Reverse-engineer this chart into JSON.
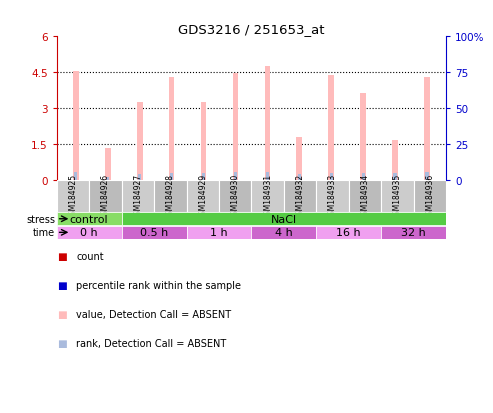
{
  "title": "GDS3216 / 251653_at",
  "samples": [
    "GSM184925",
    "GSM184926",
    "GSM184927",
    "GSM184928",
    "GSM184929",
    "GSM184930",
    "GSM184931",
    "GSM184932",
    "GSM184933",
    "GSM184934",
    "GSM184935",
    "GSM184936"
  ],
  "pink_bar_values": [
    4.55,
    1.35,
    3.25,
    4.3,
    3.25,
    4.45,
    4.75,
    1.8,
    4.4,
    3.65,
    1.65,
    4.3
  ],
  "blue_bar_values": [
    0.32,
    0.12,
    0.27,
    0.3,
    0.28,
    0.32,
    0.32,
    0.27,
    0.3,
    0.3,
    0.28,
    0.32
  ],
  "ylim_left": [
    0,
    6
  ],
  "ylim_right": [
    0,
    100
  ],
  "yticks_left": [
    0,
    1.5,
    3.0,
    4.5,
    6.0
  ],
  "ytick_labels_left": [
    "0",
    "1.5",
    "3",
    "4.5",
    "6"
  ],
  "yticks_right": [
    0,
    25,
    50,
    75,
    100
  ],
  "ytick_labels_right": [
    "0",
    "25",
    "50",
    "75",
    "100%"
  ],
  "stress_groups": [
    {
      "label": "control",
      "start": 0,
      "end": 2,
      "color": "#88dd66"
    },
    {
      "label": "NaCl",
      "start": 2,
      "end": 12,
      "color": "#55cc44"
    }
  ],
  "time_groups": [
    {
      "label": "0 h",
      "start": 0,
      "end": 2,
      "color": "#f0a0f0"
    },
    {
      "label": "0.5 h",
      "start": 2,
      "end": 4,
      "color": "#cc66cc"
    },
    {
      "label": "1 h",
      "start": 4,
      "end": 6,
      "color": "#f0a0f0"
    },
    {
      "label": "4 h",
      "start": 6,
      "end": 8,
      "color": "#cc66cc"
    },
    {
      "label": "16 h",
      "start": 8,
      "end": 10,
      "color": "#f0a0f0"
    },
    {
      "label": "32 h",
      "start": 10,
      "end": 12,
      "color": "#cc66cc"
    }
  ],
  "legend_items": [
    {
      "color": "#cc0000",
      "label": "count"
    },
    {
      "color": "#0000cc",
      "label": "percentile rank within the sample"
    },
    {
      "color": "#ffbbbb",
      "label": "value, Detection Call = ABSENT"
    },
    {
      "color": "#aabbdd",
      "label": "rank, Detection Call = ABSENT"
    }
  ],
  "pink_bar_width": 0.18,
  "blue_bar_width": 0.1,
  "background_color": "#ffffff",
  "left_axis_color": "#cc0000",
  "right_axis_color": "#0000cc",
  "sample_label_color": "#cccccc",
  "sample_label_color2": "#bbbbbb"
}
